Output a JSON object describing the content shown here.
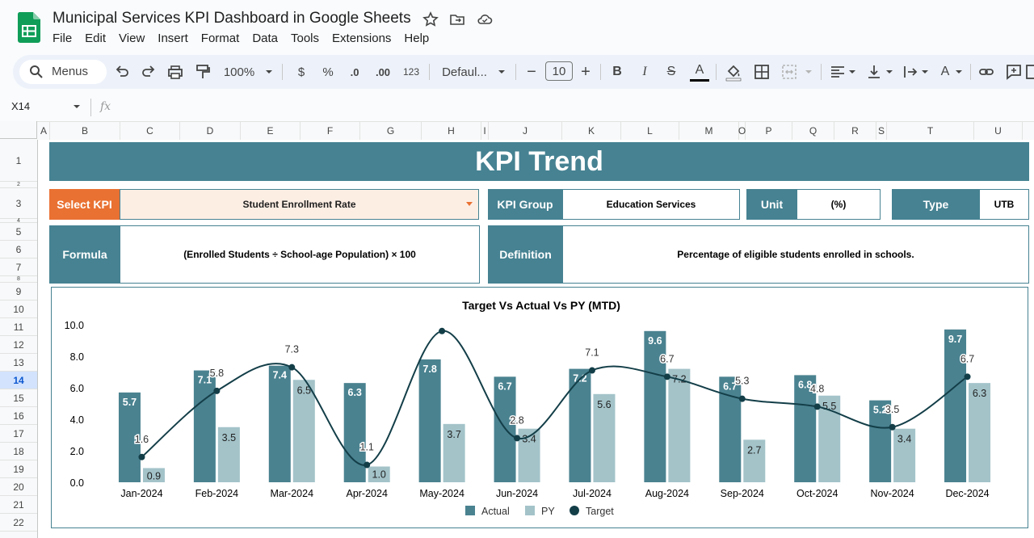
{
  "app": {
    "title": "Municipal Services KPI Dashboard in Google Sheets",
    "menu": [
      "File",
      "Edit",
      "View",
      "Insert",
      "Format",
      "Data",
      "Tools",
      "Extensions",
      "Help"
    ]
  },
  "toolbar": {
    "menus_label": "Menus",
    "zoom": "100%",
    "currency": "$",
    "percent": "%",
    "dec_decrease": ".0",
    "dec_increase": ".00",
    "number_format": "123",
    "font": "Defaul...",
    "font_size": "10",
    "minus": "−",
    "plus": "+",
    "bold": "B",
    "italic": "I",
    "strike": "S",
    "text_color": "A",
    "text_color_2": "A"
  },
  "formula_bar": {
    "cell_ref": "X14",
    "fx": "fx"
  },
  "columns": [
    "A",
    "B",
    "C",
    "D",
    "E",
    "F",
    "G",
    "H",
    "I",
    "J",
    "K",
    "L",
    "M",
    "O",
    "P",
    "Q",
    "R",
    "S",
    "T",
    "U"
  ],
  "rows": [
    "1",
    "2",
    "3",
    "4",
    "5",
    "6",
    "7",
    "8",
    "9",
    "10",
    "11",
    "12",
    "13",
    "14",
    "15",
    "16",
    "17",
    "18",
    "19",
    "20",
    "21",
    "22"
  ],
  "dashboard": {
    "banner": "KPI Trend",
    "select_kpi_label": "Select KPI",
    "select_kpi_value": "Student Enrollment Rate",
    "kpi_group_label": "KPI Group",
    "kpi_group_value": "Education Services",
    "unit_label": "Unit",
    "unit_value": "(%)",
    "type_label": "Type",
    "type_value": "UTB",
    "formula_label": "Formula",
    "formula_value": "(Enrolled Students ÷ School-age Population) × 100",
    "definition_label": "Definition",
    "definition_value": "Percentage of eligible students enrolled in schools."
  },
  "chart_data": {
    "type": "bar",
    "title": "Target Vs Actual Vs PY (MTD)",
    "categories": [
      "Jan-2024",
      "Feb-2024",
      "Mar-2024",
      "Apr-2024",
      "May-2024",
      "Jun-2024",
      "Jul-2024",
      "Aug-2024",
      "Sep-2024",
      "Oct-2024",
      "Nov-2024",
      "Dec-2024"
    ],
    "series": [
      {
        "name": "Actual",
        "type": "bar",
        "color": "#4a8290",
        "values": [
          5.7,
          7.1,
          7.4,
          6.3,
          7.8,
          6.7,
          7.2,
          9.6,
          6.7,
          6.8,
          5.2,
          9.7
        ]
      },
      {
        "name": "PY",
        "type": "bar",
        "color": "#a3c3c9",
        "values": [
          0.9,
          3.5,
          6.5,
          1.0,
          3.7,
          3.4,
          5.6,
          7.2,
          2.7,
          5.5,
          3.4,
          6.3
        ]
      },
      {
        "name": "Target",
        "type": "line",
        "color": "#133e48",
        "values": [
          1.6,
          5.8,
          7.3,
          1.1,
          9.6,
          2.8,
          7.1,
          6.7,
          5.3,
          4.8,
          3.5,
          6.7
        ],
        "labels": [
          "1.6",
          "5.8",
          "7.3",
          "1.1",
          "",
          "2.8",
          "7.1",
          "6.7",
          "5.3",
          "4.8",
          "3.5",
          "6.7"
        ]
      }
    ],
    "ylim": [
      0,
      10
    ],
    "yticks": [
      "0.0",
      "2.0",
      "4.0",
      "6.0",
      "8.0",
      "10.0"
    ],
    "legend": "bottom"
  }
}
